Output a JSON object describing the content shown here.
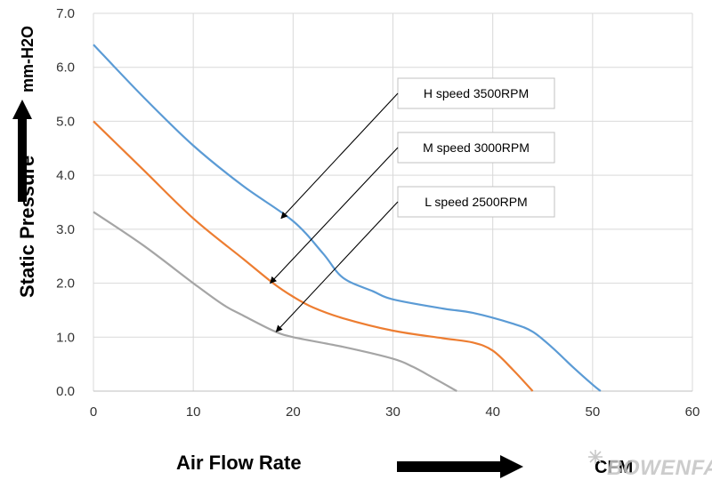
{
  "chart_data": {
    "type": "line",
    "xlabel": "Air Flow Rate",
    "xunit": "CFM",
    "ylabel": "Static Pressure",
    "yunit": "mm-H2O",
    "xlim": [
      0,
      60
    ],
    "ylim": [
      0,
      7
    ],
    "xticks": [
      "0",
      "10",
      "20",
      "30",
      "40",
      "50",
      "60"
    ],
    "yticks": [
      "0.0",
      "1.0",
      "2.0",
      "3.0",
      "4.0",
      "5.0",
      "6.0",
      "7.0"
    ],
    "grid": true,
    "series": [
      {
        "name": "H speed 3500RPM",
        "color": "#5b9bd5",
        "points": [
          [
            0,
            6.42
          ],
          [
            5,
            5.45
          ],
          [
            10,
            4.55
          ],
          [
            15,
            3.8
          ],
          [
            20,
            3.15
          ],
          [
            23,
            2.55
          ],
          [
            25,
            2.1
          ],
          [
            28,
            1.85
          ],
          [
            30,
            1.7
          ],
          [
            35,
            1.53
          ],
          [
            38,
            1.45
          ],
          [
            42,
            1.25
          ],
          [
            44,
            1.1
          ],
          [
            46,
            0.8
          ],
          [
            48,
            0.45
          ],
          [
            50,
            0.12
          ],
          [
            50.8,
            0.0
          ]
        ]
      },
      {
        "name": "M speed 3000RPM",
        "color": "#ed7d31",
        "points": [
          [
            0,
            5.0
          ],
          [
            5,
            4.1
          ],
          [
            10,
            3.2
          ],
          [
            15,
            2.45
          ],
          [
            18,
            2.0
          ],
          [
            20,
            1.75
          ],
          [
            22,
            1.55
          ],
          [
            25,
            1.35
          ],
          [
            30,
            1.12
          ],
          [
            35,
            0.98
          ],
          [
            38,
            0.9
          ],
          [
            40,
            0.75
          ],
          [
            42,
            0.4
          ],
          [
            44,
            0.0
          ]
        ]
      },
      {
        "name": "L speed 2500RPM",
        "color": "#a5a5a5",
        "points": [
          [
            0,
            3.32
          ],
          [
            5,
            2.7
          ],
          [
            10,
            2.0
          ],
          [
            13,
            1.6
          ],
          [
            15,
            1.4
          ],
          [
            18,
            1.12
          ],
          [
            20,
            1.0
          ],
          [
            25,
            0.82
          ],
          [
            30,
            0.6
          ],
          [
            32,
            0.45
          ],
          [
            34,
            0.25
          ],
          [
            36.4,
            0.0
          ]
        ]
      }
    ],
    "annotations": [
      {
        "text": "H speed 3500RPM",
        "series": 0,
        "arrow_to": [
          18.8,
          3.2
        ]
      },
      {
        "text": "M speed 3000RPM",
        "series": 1,
        "arrow_to": [
          17.7,
          2.0
        ]
      },
      {
        "text": "L speed 2500RPM",
        "series": 2,
        "arrow_to": [
          18.3,
          1.1
        ]
      }
    ]
  },
  "watermark": {
    "text": "BOWENFAN",
    "kind": "logo"
  }
}
